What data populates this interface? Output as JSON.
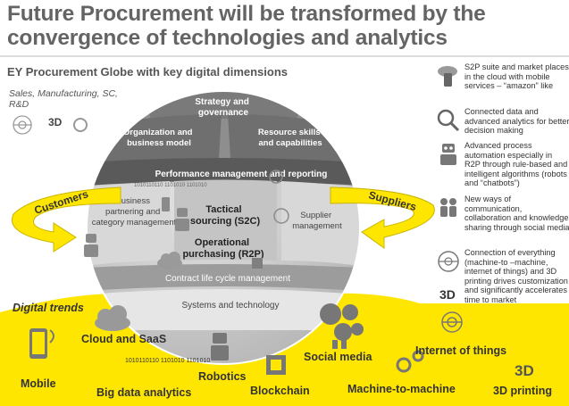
{
  "title": "Future Procurement will be transformed by the convergence of technologies and analytics",
  "subtitle": "EY Procurement Globe with key digital dimensions",
  "side_note": "Sales, Manufacturing, SC, R&D",
  "globe": {
    "strategy": "Strategy and governance",
    "organization": "Organization and business model",
    "resource": "Resource skills and capabilities",
    "performance": "Performance management and reporting",
    "business_partnering": "Business partnering and category management",
    "tactical": "Tactical sourcing (S2C)",
    "operational": "Operational purchasing (R2P)",
    "supplier_mgmt": "Supplier management",
    "contract": "Contract life cycle management",
    "systems": "Systems and technology",
    "customers": "Customers",
    "suppliers": "Suppliers"
  },
  "key_dimensions": [
    {
      "icon": "cloud-mobile-icon",
      "text": "S2P suite and market places in the cloud with mobile services – “amazon” like"
    },
    {
      "icon": "analytics-magnifier-icon",
      "text": "Connected data and advanced analytics for better decision making"
    },
    {
      "icon": "robot-automation-icon",
      "text": "Advanced process automation especially in R2P through rule-based and intelligent algorithms (robots and “chatbots”)"
    },
    {
      "icon": "social-collaboration-icon",
      "text": "New ways of communication, collaboration and knowledge sharing through social media"
    },
    {
      "icon": "connected-things-icon",
      "text": "Connection of everything (machine-to –machine, internet of things) and 3D printing drives customization and significantly accelerates time to market"
    }
  ],
  "digital_trends_title": "Digital trends",
  "trends": {
    "mobile": "Mobile",
    "cloud": "Cloud and SaaS",
    "big_data": "Big data analytics",
    "robotics": "Robotics",
    "blockchain": "Blockchain",
    "social": "Social media",
    "m2m": "Machine-to-machine",
    "iot": "Internet of things",
    "printing": "3D printing"
  },
  "icon_text": {
    "three_d": "3D",
    "binary": "1010110110 1101010 1101010"
  },
  "colors": {
    "yellow": "#ffe600",
    "dark_band": "#646464",
    "globe_light": "#cfcfcf",
    "globe_mid": "#9a9a9a"
  }
}
